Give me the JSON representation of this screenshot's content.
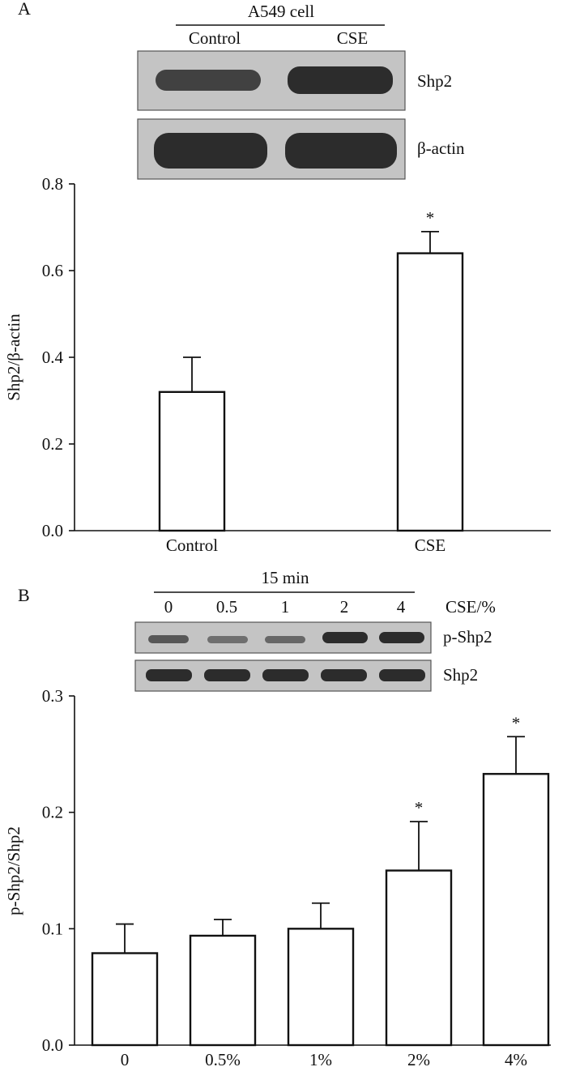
{
  "panel_a": {
    "label": "A",
    "blot": {
      "group_label": "A549 cell",
      "lanes": [
        "Control",
        "CSE"
      ],
      "rows": [
        "Shp2",
        "β-actin"
      ]
    }
  },
  "panel_b": {
    "label": "B",
    "blot": {
      "group_label": "15 min",
      "lanes": [
        "0",
        "0.5",
        "1",
        "2",
        "4"
      ],
      "lane_axis_label": "CSE/%",
      "rows": [
        "p-Shp2",
        "Shp2"
      ]
    }
  },
  "colors": {
    "ink": "#111111",
    "bar_fill": "#ffffff",
    "blot_bg": "#c4c4c4",
    "band": "#2a2a2a"
  },
  "chart_data": [
    {
      "type": "bar",
      "title": "",
      "xlabel": "",
      "ylabel": "Shp2/β-actin",
      "categories": [
        "Control",
        "CSE"
      ],
      "values": [
        0.32,
        0.64
      ],
      "errors": [
        0.08,
        0.05
      ],
      "significance": [
        "",
        "*"
      ],
      "ylim": [
        0,
        0.8
      ],
      "yticks": [
        "0.0",
        "0.2",
        "0.4",
        "0.6",
        "0.8"
      ],
      "grid": false
    },
    {
      "type": "bar",
      "title": "",
      "xlabel": "",
      "ylabel": "p-Shp2/Shp2",
      "categories": [
        "0",
        "0.5%",
        "1%",
        "2%",
        "4%"
      ],
      "values": [
        0.079,
        0.094,
        0.1,
        0.15,
        0.233
      ],
      "errors": [
        0.025,
        0.014,
        0.022,
        0.042,
        0.032
      ],
      "significance": [
        "",
        "",
        "",
        "*",
        "*"
      ],
      "ylim": [
        0,
        0.3
      ],
      "yticks": [
        "0.0",
        "0.1",
        "0.2",
        "0.3"
      ],
      "grid": false
    }
  ]
}
